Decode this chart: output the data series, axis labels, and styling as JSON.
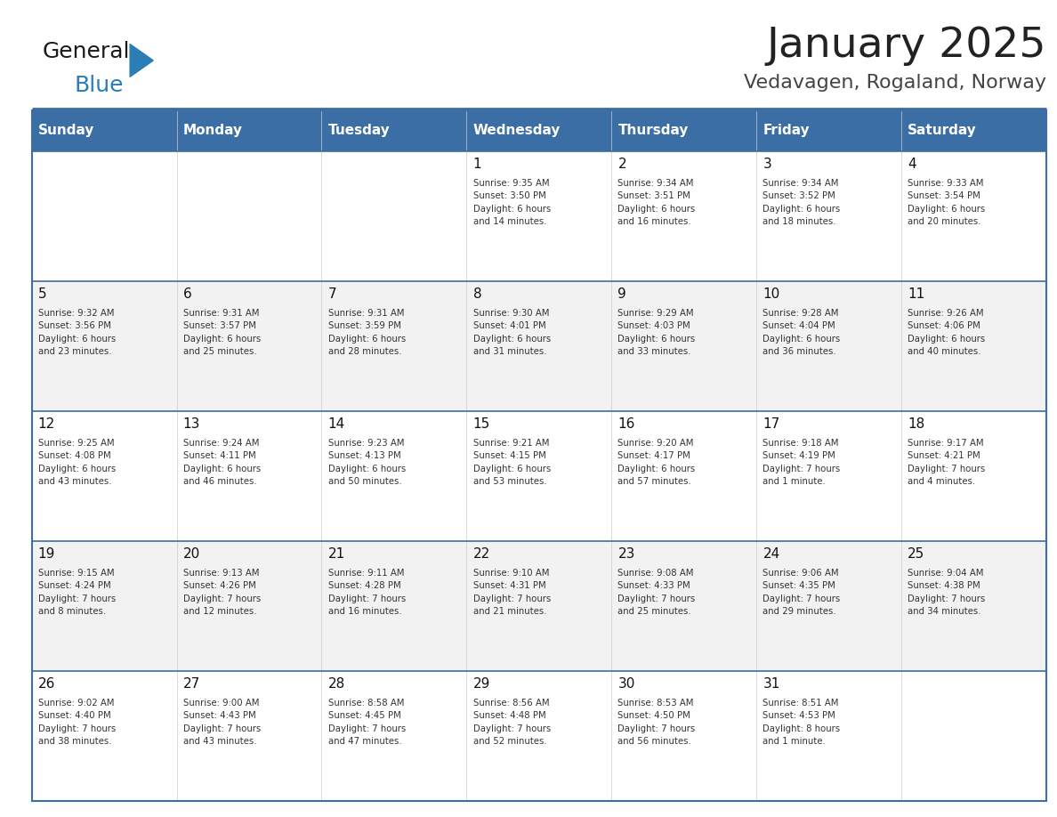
{
  "title": "January 2025",
  "subtitle": "Vedavagen, Rogaland, Norway",
  "header_bg_color": "#3A6EA5",
  "header_text_color": "#FFFFFF",
  "row_bg_even": "#F2F2F2",
  "row_bg_odd": "#FFFFFF",
  "grid_line_color": "#3A6EA5",
  "day_number_color": "#000000",
  "cell_text_color": "#333333",
  "days_of_week": [
    "Sunday",
    "Monday",
    "Tuesday",
    "Wednesday",
    "Thursday",
    "Friday",
    "Saturday"
  ],
  "weeks": [
    [
      {
        "day": "",
        "info": ""
      },
      {
        "day": "",
        "info": ""
      },
      {
        "day": "",
        "info": ""
      },
      {
        "day": "1",
        "info": "Sunrise: 9:35 AM\nSunset: 3:50 PM\nDaylight: 6 hours\nand 14 minutes."
      },
      {
        "day": "2",
        "info": "Sunrise: 9:34 AM\nSunset: 3:51 PM\nDaylight: 6 hours\nand 16 minutes."
      },
      {
        "day": "3",
        "info": "Sunrise: 9:34 AM\nSunset: 3:52 PM\nDaylight: 6 hours\nand 18 minutes."
      },
      {
        "day": "4",
        "info": "Sunrise: 9:33 AM\nSunset: 3:54 PM\nDaylight: 6 hours\nand 20 minutes."
      }
    ],
    [
      {
        "day": "5",
        "info": "Sunrise: 9:32 AM\nSunset: 3:56 PM\nDaylight: 6 hours\nand 23 minutes."
      },
      {
        "day": "6",
        "info": "Sunrise: 9:31 AM\nSunset: 3:57 PM\nDaylight: 6 hours\nand 25 minutes."
      },
      {
        "day": "7",
        "info": "Sunrise: 9:31 AM\nSunset: 3:59 PM\nDaylight: 6 hours\nand 28 minutes."
      },
      {
        "day": "8",
        "info": "Sunrise: 9:30 AM\nSunset: 4:01 PM\nDaylight: 6 hours\nand 31 minutes."
      },
      {
        "day": "9",
        "info": "Sunrise: 9:29 AM\nSunset: 4:03 PM\nDaylight: 6 hours\nand 33 minutes."
      },
      {
        "day": "10",
        "info": "Sunrise: 9:28 AM\nSunset: 4:04 PM\nDaylight: 6 hours\nand 36 minutes."
      },
      {
        "day": "11",
        "info": "Sunrise: 9:26 AM\nSunset: 4:06 PM\nDaylight: 6 hours\nand 40 minutes."
      }
    ],
    [
      {
        "day": "12",
        "info": "Sunrise: 9:25 AM\nSunset: 4:08 PM\nDaylight: 6 hours\nand 43 minutes."
      },
      {
        "day": "13",
        "info": "Sunrise: 9:24 AM\nSunset: 4:11 PM\nDaylight: 6 hours\nand 46 minutes."
      },
      {
        "day": "14",
        "info": "Sunrise: 9:23 AM\nSunset: 4:13 PM\nDaylight: 6 hours\nand 50 minutes."
      },
      {
        "day": "15",
        "info": "Sunrise: 9:21 AM\nSunset: 4:15 PM\nDaylight: 6 hours\nand 53 minutes."
      },
      {
        "day": "16",
        "info": "Sunrise: 9:20 AM\nSunset: 4:17 PM\nDaylight: 6 hours\nand 57 minutes."
      },
      {
        "day": "17",
        "info": "Sunrise: 9:18 AM\nSunset: 4:19 PM\nDaylight: 7 hours\nand 1 minute."
      },
      {
        "day": "18",
        "info": "Sunrise: 9:17 AM\nSunset: 4:21 PM\nDaylight: 7 hours\nand 4 minutes."
      }
    ],
    [
      {
        "day": "19",
        "info": "Sunrise: 9:15 AM\nSunset: 4:24 PM\nDaylight: 7 hours\nand 8 minutes."
      },
      {
        "day": "20",
        "info": "Sunrise: 9:13 AM\nSunset: 4:26 PM\nDaylight: 7 hours\nand 12 minutes."
      },
      {
        "day": "21",
        "info": "Sunrise: 9:11 AM\nSunset: 4:28 PM\nDaylight: 7 hours\nand 16 minutes."
      },
      {
        "day": "22",
        "info": "Sunrise: 9:10 AM\nSunset: 4:31 PM\nDaylight: 7 hours\nand 21 minutes."
      },
      {
        "day": "23",
        "info": "Sunrise: 9:08 AM\nSunset: 4:33 PM\nDaylight: 7 hours\nand 25 minutes."
      },
      {
        "day": "24",
        "info": "Sunrise: 9:06 AM\nSunset: 4:35 PM\nDaylight: 7 hours\nand 29 minutes."
      },
      {
        "day": "25",
        "info": "Sunrise: 9:04 AM\nSunset: 4:38 PM\nDaylight: 7 hours\nand 34 minutes."
      }
    ],
    [
      {
        "day": "26",
        "info": "Sunrise: 9:02 AM\nSunset: 4:40 PM\nDaylight: 7 hours\nand 38 minutes."
      },
      {
        "day": "27",
        "info": "Sunrise: 9:00 AM\nSunset: 4:43 PM\nDaylight: 7 hours\nand 43 minutes."
      },
      {
        "day": "28",
        "info": "Sunrise: 8:58 AM\nSunset: 4:45 PM\nDaylight: 7 hours\nand 47 minutes."
      },
      {
        "day": "29",
        "info": "Sunrise: 8:56 AM\nSunset: 4:48 PM\nDaylight: 7 hours\nand 52 minutes."
      },
      {
        "day": "30",
        "info": "Sunrise: 8:53 AM\nSunset: 4:50 PM\nDaylight: 7 hours\nand 56 minutes."
      },
      {
        "day": "31",
        "info": "Sunrise: 8:51 AM\nSunset: 4:53 PM\nDaylight: 8 hours\nand 1 minute."
      },
      {
        "day": "",
        "info": ""
      }
    ]
  ],
  "logo_general_color": "#1a1a1a",
  "logo_blue_color": "#2A7DB5",
  "logo_triangle_color": "#2A7DB5"
}
